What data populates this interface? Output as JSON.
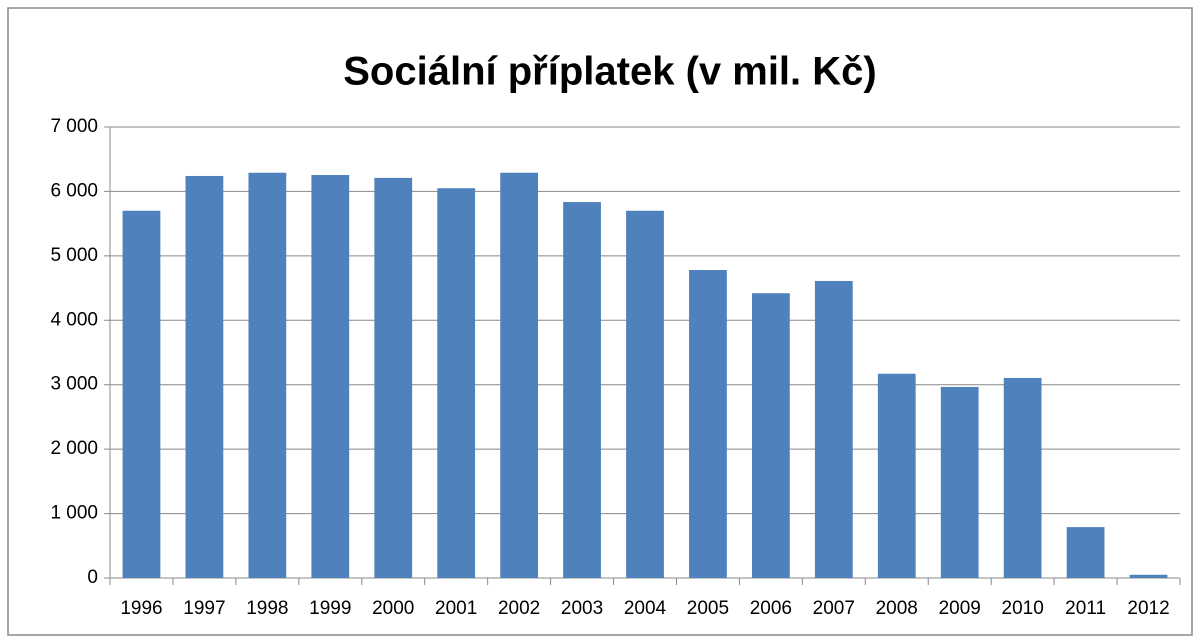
{
  "chart_data": {
    "type": "bar",
    "title": "Sociální příplatek (v mil. Kč)",
    "categories": [
      "1996",
      "1997",
      "1998",
      "1999",
      "2000",
      "2001",
      "2002",
      "2003",
      "2004",
      "2005",
      "2006",
      "2007",
      "2008",
      "2009",
      "2010",
      "2011",
      "2012"
    ],
    "values": [
      5700,
      6240,
      6290,
      6255,
      6210,
      6050,
      6290,
      5835,
      5700,
      4780,
      4420,
      4610,
      3170,
      2965,
      3105,
      790,
      50
    ],
    "color": "#4f81bd",
    "ylim": [
      0,
      7000
    ],
    "yticks": [
      0,
      {
        "value": 1000,
        "label": "1 000"
      },
      {
        "value": 2000,
        "label": "2 000"
      },
      {
        "value": 3000,
        "label": "3 000"
      },
      {
        "value": 4000,
        "label": "4 000"
      },
      {
        "value": 5000,
        "label": "5 000"
      },
      {
        "value": 6000,
        "label": "6 000"
      },
      {
        "value": 7000,
        "label": "7 000"
      }
    ],
    "grid": true
  }
}
